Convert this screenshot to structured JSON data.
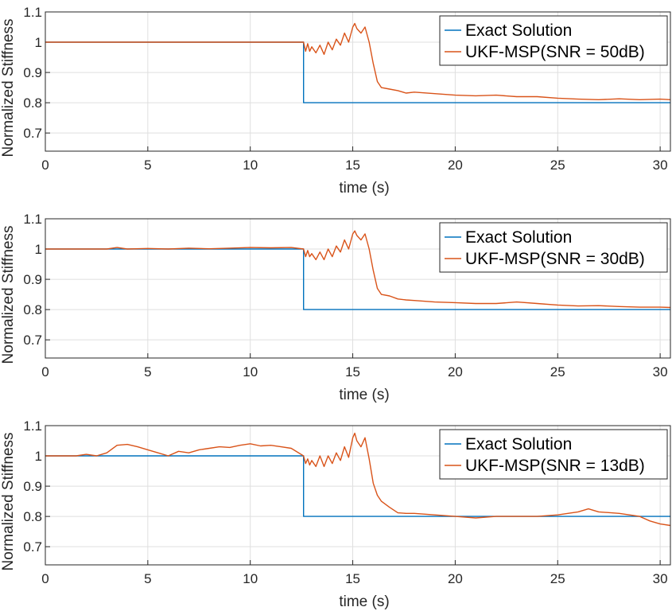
{
  "chart_data": [
    {
      "type": "line",
      "xlabel": "time (s)",
      "ylabel": "Normalized Stiffness",
      "xlim": [
        0,
        30.5
      ],
      "ylim": [
        0.64,
        1.1
      ],
      "xticks": [
        0,
        5,
        10,
        15,
        20,
        25,
        30
      ],
      "yticks": [
        0.7,
        0.8,
        0.9,
        1,
        1.1
      ],
      "ytick_labels": [
        "0.7",
        "0.8",
        "0.9",
        "1",
        "1.1"
      ],
      "grid": true,
      "legend_position": "top-right",
      "series": [
        {
          "name": "Exact Solution",
          "color": "#0072BD",
          "x": [
            0,
            12.6,
            12.6,
            30.5
          ],
          "y": [
            1.0,
            1.0,
            0.8,
            0.8
          ]
        },
        {
          "name": "UKF-MSP(SNR = 50dB)",
          "color": "#D95319",
          "x": [
            0,
            12.6,
            12.7,
            12.8,
            12.9,
            13.0,
            13.2,
            13.4,
            13.6,
            13.8,
            14.0,
            14.2,
            14.4,
            14.6,
            14.8,
            15.0,
            15.1,
            15.2,
            15.4,
            15.6,
            15.8,
            16.0,
            16.2,
            16.4,
            16.8,
            17.2,
            17.6,
            18.0,
            19.0,
            20.0,
            21.0,
            22.0,
            23.0,
            24.0,
            25.0,
            26.0,
            27.0,
            28.0,
            29.0,
            30.0,
            30.5
          ],
          "y": [
            1.0,
            1.0,
            0.97,
            0.995,
            0.97,
            0.985,
            0.965,
            0.99,
            0.96,
            1.0,
            0.975,
            1.01,
            0.99,
            1.03,
            1.0,
            1.05,
            1.062,
            1.045,
            1.03,
            1.05,
            1.0,
            0.93,
            0.87,
            0.85,
            0.845,
            0.84,
            0.832,
            0.835,
            0.83,
            0.825,
            0.823,
            0.825,
            0.82,
            0.82,
            0.815,
            0.812,
            0.81,
            0.813,
            0.81,
            0.812,
            0.81
          ]
        }
      ]
    },
    {
      "type": "line",
      "xlabel": "time (s)",
      "ylabel": "Normalized Stiffness",
      "xlim": [
        0,
        30.5
      ],
      "ylim": [
        0.64,
        1.1
      ],
      "xticks": [
        0,
        5,
        10,
        15,
        20,
        25,
        30
      ],
      "yticks": [
        0.7,
        0.8,
        0.9,
        1,
        1.1
      ],
      "ytick_labels": [
        "0.7",
        "0.8",
        "0.9",
        "1",
        "1.1"
      ],
      "grid": true,
      "legend_position": "top-right",
      "series": [
        {
          "name": "Exact Solution",
          "color": "#0072BD",
          "x": [
            0,
            12.6,
            12.6,
            30.5
          ],
          "y": [
            1.0,
            1.0,
            0.8,
            0.8
          ]
        },
        {
          "name": "UKF-MSP(SNR = 30dB)",
          "color": "#D95319",
          "x": [
            0,
            3.0,
            3.5,
            4.0,
            5.0,
            6.0,
            7.0,
            8.0,
            9.0,
            10.0,
            11.0,
            12.0,
            12.6,
            12.7,
            12.8,
            12.9,
            13.0,
            13.2,
            13.4,
            13.6,
            13.8,
            14.0,
            14.2,
            14.4,
            14.6,
            14.8,
            15.0,
            15.1,
            15.2,
            15.4,
            15.6,
            15.8,
            16.0,
            16.2,
            16.4,
            16.8,
            17.2,
            17.6,
            18.0,
            19.0,
            20.0,
            21.0,
            22.0,
            23.0,
            24.0,
            25.0,
            26.0,
            27.0,
            28.0,
            29.0,
            30.0,
            30.5
          ],
          "y": [
            1.0,
            1.0,
            1.005,
            1.0,
            1.002,
            1.0,
            1.003,
            1.001,
            1.003,
            1.005,
            1.004,
            1.005,
            1.0,
            0.975,
            0.995,
            0.975,
            0.985,
            0.965,
            0.99,
            0.965,
            1.0,
            0.975,
            1.01,
            0.99,
            1.03,
            1.0,
            1.05,
            1.06,
            1.045,
            1.03,
            1.05,
            1.0,
            0.93,
            0.87,
            0.85,
            0.845,
            0.835,
            0.832,
            0.83,
            0.825,
            0.823,
            0.82,
            0.82,
            0.825,
            0.82,
            0.815,
            0.812,
            0.813,
            0.81,
            0.808,
            0.808,
            0.807
          ]
        }
      ]
    },
    {
      "type": "line",
      "xlabel": "time (s)",
      "ylabel": "Normalized Stiffness",
      "xlim": [
        0,
        30.5
      ],
      "ylim": [
        0.64,
        1.1
      ],
      "xticks": [
        0,
        5,
        10,
        15,
        20,
        25,
        30
      ],
      "yticks": [
        0.7,
        0.8,
        0.9,
        1,
        1.1
      ],
      "ytick_labels": [
        "0.7",
        "0.8",
        "0.9",
        "1",
        "1.1"
      ],
      "grid": true,
      "legend_position": "top-right",
      "series": [
        {
          "name": "Exact Solution",
          "color": "#0072BD",
          "x": [
            0,
            12.6,
            12.6,
            30.5
          ],
          "y": [
            1.0,
            1.0,
            0.8,
            0.8
          ]
        },
        {
          "name": "UKF-MSP(SNR = 13dB)",
          "color": "#D95319",
          "x": [
            0,
            1.5,
            2.0,
            2.5,
            3.0,
            3.5,
            4.0,
            4.5,
            5.0,
            5.5,
            6.0,
            6.5,
            7.0,
            7.5,
            8.0,
            8.5,
            9.0,
            9.5,
            10.0,
            10.5,
            11.0,
            11.5,
            12.0,
            12.6,
            12.7,
            12.8,
            12.9,
            13.0,
            13.2,
            13.4,
            13.6,
            13.8,
            14.0,
            14.2,
            14.4,
            14.6,
            14.8,
            15.0,
            15.1,
            15.2,
            15.4,
            15.6,
            15.8,
            16.0,
            16.2,
            16.4,
            16.8,
            17.2,
            17.6,
            18.0,
            19.0,
            20.0,
            21.0,
            22.0,
            23.0,
            24.0,
            25.0,
            26.0,
            26.5,
            27.0,
            28.0,
            29.0,
            29.5,
            30.0,
            30.5
          ],
          "y": [
            1.0,
            1.0,
            1.005,
            1.0,
            1.01,
            1.035,
            1.038,
            1.03,
            1.02,
            1.01,
            1.0,
            1.015,
            1.01,
            1.02,
            1.025,
            1.03,
            1.028,
            1.035,
            1.04,
            1.033,
            1.035,
            1.03,
            1.025,
            1.0,
            0.975,
            0.99,
            0.97,
            0.985,
            0.965,
            1.0,
            0.965,
            1.0,
            0.975,
            1.01,
            0.985,
            1.03,
            0.995,
            1.06,
            1.075,
            1.05,
            1.03,
            1.06,
            0.99,
            0.91,
            0.87,
            0.85,
            0.83,
            0.812,
            0.81,
            0.81,
            0.805,
            0.8,
            0.795,
            0.8,
            0.8,
            0.8,
            0.805,
            0.815,
            0.825,
            0.815,
            0.81,
            0.8,
            0.785,
            0.775,
            0.77
          ]
        }
      ]
    }
  ]
}
